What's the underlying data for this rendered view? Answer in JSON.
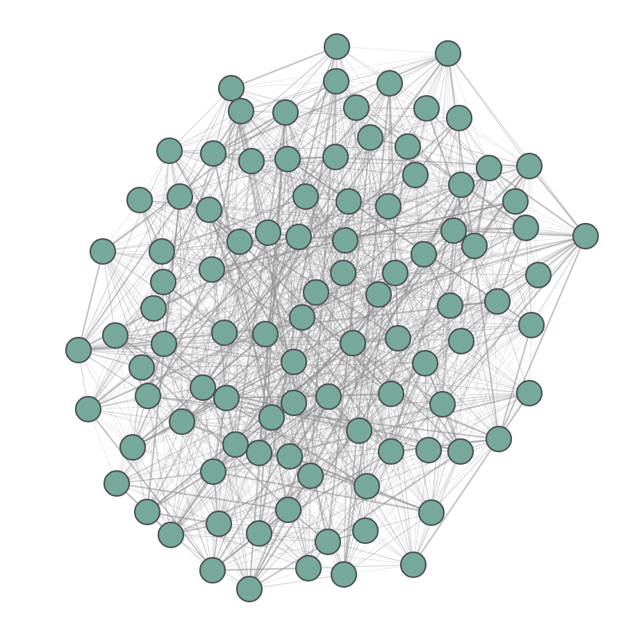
{
  "graph": {
    "node_count": 116,
    "colors": {
      "background": "#ffffff",
      "node_fill": "#77a99b",
      "node_stroke": "#4a4f52",
      "edge": "#8c8c8c"
    }
  }
}
